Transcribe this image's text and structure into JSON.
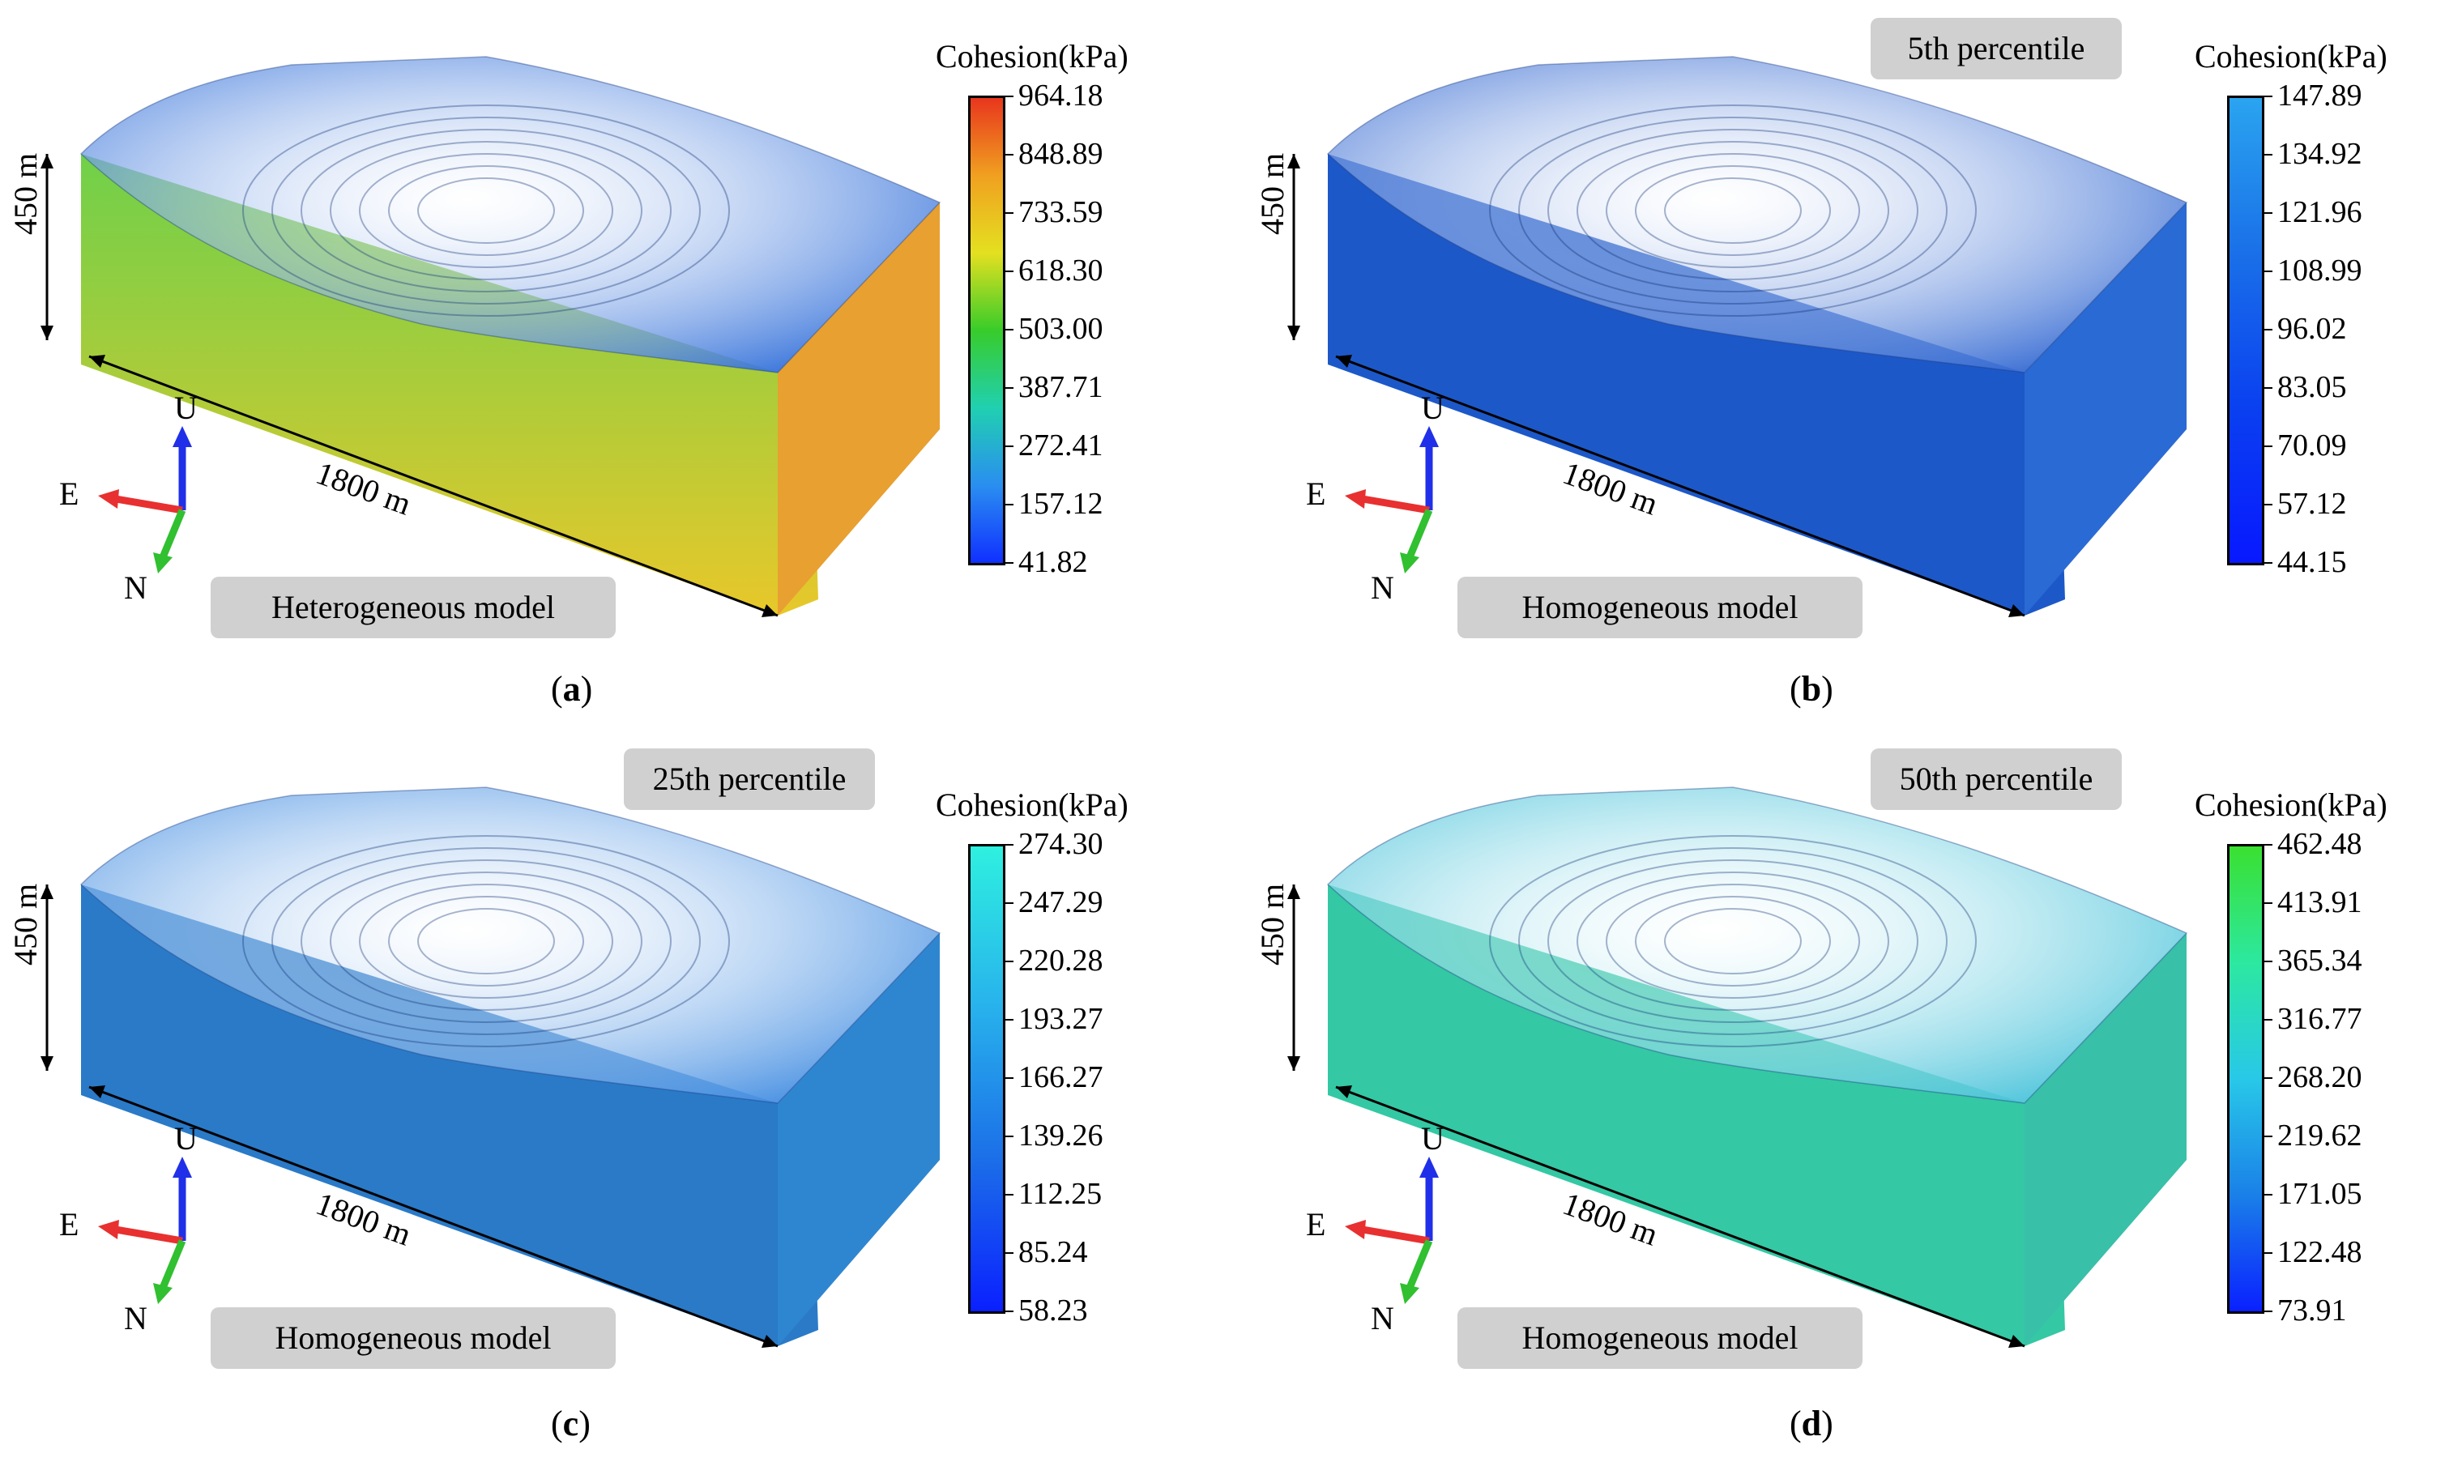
{
  "panels": [
    {
      "id": "a",
      "caption_letter": "a",
      "model_label": "Heterogeneous model",
      "percentile_label": "",
      "legend_title": "Cohesion(kPa)",
      "legend_ticks": [
        "964.18",
        "848.89",
        "733.59",
        "618.30",
        "503.00",
        "387.71",
        "272.41",
        "157.12",
        "41.82"
      ],
      "gradient": [
        "#e8361d",
        "#f0a020",
        "#e4e020",
        "#38cc2a",
        "#20d0b0",
        "#2a8ef0",
        "#1030ff"
      ],
      "height_label": "450 m",
      "length_label": "1800 m",
      "axes": {
        "up": "U",
        "east": "E",
        "north": "N"
      },
      "colors": {
        "top": "#2a6ad8",
        "front_top": "#6fd04a",
        "front_bottom": "#e8c82a",
        "side": "#e8a030"
      }
    },
    {
      "id": "b",
      "caption_letter": "b",
      "model_label": "Homogeneous model",
      "percentile_label": "5th percentile",
      "legend_title": "Cohesion(kPa)",
      "legend_ticks": [
        "147.89",
        "134.92",
        "121.96",
        "108.99",
        "96.02",
        "83.05",
        "70.09",
        "57.12",
        "44.15"
      ],
      "gradient": [
        "#2aa4f0",
        "#1a70e8",
        "#0a40f0",
        "#0818ff"
      ],
      "height_label": "450 m",
      "length_label": "1800 m",
      "axes": {
        "up": "U",
        "east": "E",
        "north": "N"
      },
      "colors": {
        "top": "#2a62d0",
        "front_top": "#1d58c8",
        "front_bottom": "#1d58c8",
        "side": "#2a6ad4"
      }
    },
    {
      "id": "c",
      "caption_letter": "c",
      "model_label": "Homogeneous model",
      "percentile_label": "25th percentile",
      "legend_title": "Cohesion(kPa)",
      "legend_ticks": [
        "274.30",
        "247.29",
        "220.28",
        "193.27",
        "166.27",
        "139.26",
        "112.25",
        "85.24",
        "58.23"
      ],
      "gradient": [
        "#2ef0e0",
        "#28b4ec",
        "#1c70e8",
        "#0a20ff"
      ],
      "height_label": "450 m",
      "length_label": "1800 m",
      "axes": {
        "up": "U",
        "east": "E",
        "north": "N"
      },
      "colors": {
        "top": "#3a88e0",
        "front_top": "#2a7ac8",
        "front_bottom": "#2a7ac8",
        "side": "#2f86d0"
      }
    },
    {
      "id": "d",
      "caption_letter": "d",
      "model_label": "Homogeneous model",
      "percentile_label": "50th percentile",
      "legend_title": "Cohesion(kPa)",
      "legend_ticks": [
        "462.48",
        "413.91",
        "365.34",
        "316.77",
        "268.20",
        "219.62",
        "171.05",
        "122.48",
        "73.91"
      ],
      "gradient": [
        "#3ae030",
        "#2ce8a0",
        "#28c8e8",
        "#1a80e8",
        "#0a20ff"
      ],
      "height_label": "450 m",
      "length_label": "1800 m",
      "axes": {
        "up": "U",
        "east": "E",
        "north": "N"
      },
      "colors": {
        "top": "#40c0d8",
        "front_top": "#34c8a4",
        "front_bottom": "#34c8a4",
        "side": "#38c0a8"
      }
    }
  ]
}
